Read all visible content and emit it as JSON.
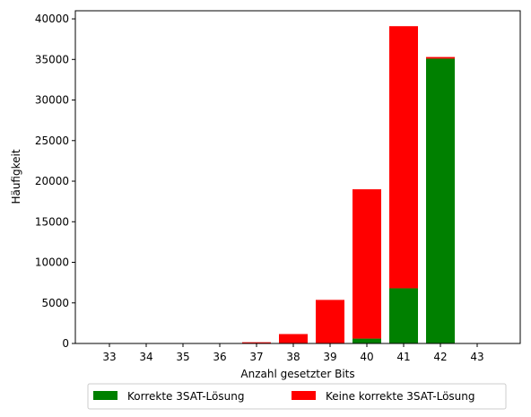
{
  "chart_data": {
    "type": "bar",
    "stacked": true,
    "categories": [
      "33",
      "34",
      "35",
      "36",
      "37",
      "38",
      "39",
      "40",
      "41",
      "42",
      "43"
    ],
    "series": [
      {
        "name": "Korrekte 3SAT-Lösung",
        "color": "#008000",
        "values": [
          0,
          0,
          0,
          0,
          0,
          10,
          20,
          600,
          6800,
          35100,
          0
        ]
      },
      {
        "name": "Keine korrekte 3SAT-Lösung",
        "color": "#ff0000",
        "values": [
          0,
          0,
          0,
          0,
          150,
          1150,
          5350,
          18400,
          32300,
          200,
          0
        ]
      }
    ],
    "xlabel": "Anzahl gesetzter Bits",
    "ylabel": "Häufigkeit",
    "ylim": [
      0,
      41000
    ],
    "yticks": [
      0,
      5000,
      10000,
      15000,
      20000,
      25000,
      30000,
      35000,
      40000
    ],
    "grid": false,
    "legend_position": "bottom-center"
  }
}
